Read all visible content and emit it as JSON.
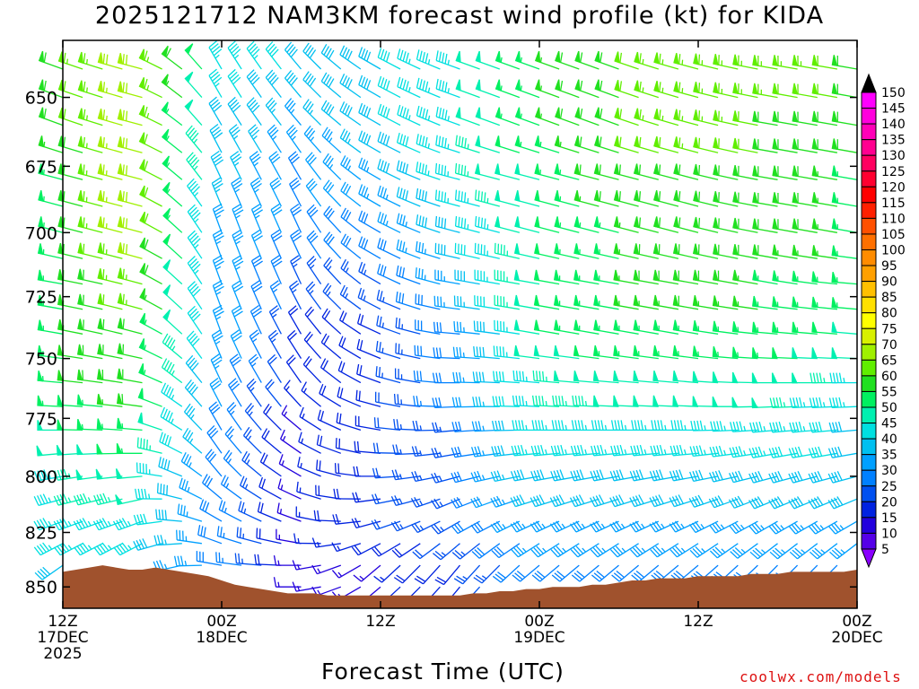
{
  "title": "2025121712 NAM3KM forecast wind profile (kt) for KIDA",
  "credit": "coolwx.com/models",
  "chart_data": {
    "type": "wind-barb-profile",
    "title": "2025121712 NAM3KM forecast wind profile (kt) for KIDA",
    "xlabel": "Forecast Time (UTC)",
    "ylabel": "",
    "x_range_hours": [
      0,
      60
    ],
    "y_range_hpa": [
      630,
      860
    ],
    "x_ticks": [
      {
        "hour": 0,
        "label": "12Z",
        "sub": "17DEC",
        "sub2": "2025"
      },
      {
        "hour": 12,
        "label": "00Z",
        "sub": "18DEC",
        "sub2": ""
      },
      {
        "hour": 24,
        "label": "12Z",
        "sub": "",
        "sub2": ""
      },
      {
        "hour": 36,
        "label": "00Z",
        "sub": "19DEC",
        "sub2": ""
      },
      {
        "hour": 48,
        "label": "12Z",
        "sub": "",
        "sub2": ""
      },
      {
        "hour": 60,
        "label": "00Z",
        "sub": "20DEC",
        "sub2": ""
      }
    ],
    "y_ticks": [
      650,
      675,
      700,
      725,
      750,
      775,
      800,
      825,
      850
    ],
    "colorbar": {
      "unit": "kt",
      "levels": [
        5,
        10,
        15,
        20,
        25,
        30,
        35,
        40,
        45,
        50,
        55,
        60,
        65,
        70,
        75,
        80,
        85,
        90,
        95,
        100,
        105,
        110,
        115,
        120,
        125,
        130,
        135,
        140,
        145,
        150
      ],
      "colors": [
        "#8a00ff",
        "#5500e8",
        "#2200dd",
        "#0022e0",
        "#0050f0",
        "#0080ff",
        "#00a0ff",
        "#00c0f0",
        "#00e0e0",
        "#00f0b0",
        "#00f060",
        "#20e020",
        "#60ee00",
        "#a0f000",
        "#d8f000",
        "#ffff00",
        "#ffe000",
        "#ffc000",
        "#ffa000",
        "#ff8c00",
        "#ff7000",
        "#ff5000",
        "#ff2000",
        "#ff0000",
        "#ff0030",
        "#ff0060",
        "#ff0090",
        "#ff00b8",
        "#ff00dd",
        "#ff00ff"
      ]
    },
    "terrain_color": "#a0522d",
    "surface_pressure_hpa": [
      {
        "hour": 0,
        "p": 843
      },
      {
        "hour": 1,
        "p": 842
      },
      {
        "hour": 2,
        "p": 841
      },
      {
        "hour": 3,
        "p": 840
      },
      {
        "hour": 4,
        "p": 841
      },
      {
        "hour": 5,
        "p": 842
      },
      {
        "hour": 6,
        "p": 842
      },
      {
        "hour": 7,
        "p": 841
      },
      {
        "hour": 8,
        "p": 842
      },
      {
        "hour": 9,
        "p": 843
      },
      {
        "hour": 10,
        "p": 844
      },
      {
        "hour": 11,
        "p": 845
      },
      {
        "hour": 12,
        "p": 847
      },
      {
        "hour": 13,
        "p": 849
      },
      {
        "hour": 14,
        "p": 850
      },
      {
        "hour": 15,
        "p": 851
      },
      {
        "hour": 16,
        "p": 852
      },
      {
        "hour": 17,
        "p": 853
      },
      {
        "hour": 18,
        "p": 853
      },
      {
        "hour": 19,
        "p": 853
      },
      {
        "hour": 20,
        "p": 854
      },
      {
        "hour": 21,
        "p": 854
      },
      {
        "hour": 22,
        "p": 854
      },
      {
        "hour": 23,
        "p": 854
      },
      {
        "hour": 24,
        "p": 854
      },
      {
        "hour": 25,
        "p": 854
      },
      {
        "hour": 26,
        "p": 854
      },
      {
        "hour": 27,
        "p": 854
      },
      {
        "hour": 28,
        "p": 854
      },
      {
        "hour": 29,
        "p": 854
      },
      {
        "hour": 30,
        "p": 854
      },
      {
        "hour": 31,
        "p": 853
      },
      {
        "hour": 32,
        "p": 853
      },
      {
        "hour": 33,
        "p": 852
      },
      {
        "hour": 34,
        "p": 852
      },
      {
        "hour": 35,
        "p": 851
      },
      {
        "hour": 36,
        "p": 851
      },
      {
        "hour": 37,
        "p": 850
      },
      {
        "hour": 38,
        "p": 850
      },
      {
        "hour": 39,
        "p": 850
      },
      {
        "hour": 40,
        "p": 849
      },
      {
        "hour": 41,
        "p": 849
      },
      {
        "hour": 42,
        "p": 848
      },
      {
        "hour": 43,
        "p": 847
      },
      {
        "hour": 44,
        "p": 847
      },
      {
        "hour": 45,
        "p": 846
      },
      {
        "hour": 46,
        "p": 846
      },
      {
        "hour": 47,
        "p": 846
      },
      {
        "hour": 48,
        "p": 845
      },
      {
        "hour": 49,
        "p": 845
      },
      {
        "hour": 50,
        "p": 845
      },
      {
        "hour": 51,
        "p": 845
      },
      {
        "hour": 52,
        "p": 844
      },
      {
        "hour": 53,
        "p": 844
      },
      {
        "hour": 54,
        "p": 844
      },
      {
        "hour": 55,
        "p": 843
      },
      {
        "hour": 56,
        "p": 843
      },
      {
        "hour": 57,
        "p": 843
      },
      {
        "hour": 58,
        "p": 843
      },
      {
        "hour": 59,
        "p": 843
      },
      {
        "hour": 60,
        "p": 842
      }
    ],
    "wind_levels_hpa": [
      640,
      650,
      660,
      670,
      680,
      690,
      700,
      710,
      720,
      730,
      740,
      750,
      760,
      770,
      780,
      790,
      800,
      810,
      820,
      830,
      840,
      850
    ],
    "wind_samples": [
      {
        "hour": 0,
        "profile": [
          [
            640,
            290,
            60
          ],
          [
            660,
            290,
            58
          ],
          [
            680,
            285,
            55
          ],
          [
            700,
            285,
            55
          ],
          [
            720,
            280,
            55
          ],
          [
            740,
            280,
            55
          ],
          [
            760,
            275,
            55
          ],
          [
            780,
            270,
            50
          ],
          [
            800,
            260,
            45
          ],
          [
            820,
            250,
            45
          ],
          [
            840,
            235,
            40
          ]
        ]
      },
      {
        "hour": 6,
        "profile": [
          [
            640,
            285,
            70
          ],
          [
            660,
            285,
            70
          ],
          [
            680,
            285,
            70
          ],
          [
            700,
            285,
            70
          ],
          [
            720,
            285,
            65
          ],
          [
            740,
            285,
            60
          ],
          [
            760,
            280,
            60
          ],
          [
            780,
            275,
            55
          ],
          [
            800,
            265,
            50
          ],
          [
            820,
            250,
            45
          ],
          [
            840,
            235,
            40
          ]
        ]
      },
      {
        "hour": 12,
        "profile": [
          [
            640,
            330,
            45
          ],
          [
            660,
            330,
            40
          ],
          [
            680,
            335,
            38
          ],
          [
            700,
            340,
            35
          ],
          [
            720,
            340,
            35
          ],
          [
            740,
            340,
            35
          ],
          [
            760,
            335,
            33
          ],
          [
            780,
            330,
            30
          ],
          [
            800,
            320,
            30
          ],
          [
            820,
            300,
            30
          ],
          [
            840,
            280,
            30
          ]
        ]
      },
      {
        "hour": 18,
        "profile": [
          [
            640,
            320,
            40
          ],
          [
            660,
            320,
            35
          ],
          [
            680,
            330,
            30
          ],
          [
            700,
            335,
            30
          ],
          [
            720,
            335,
            25
          ],
          [
            740,
            330,
            20
          ],
          [
            760,
            325,
            18
          ],
          [
            780,
            310,
            15
          ],
          [
            800,
            300,
            15
          ],
          [
            820,
            290,
            15
          ],
          [
            840,
            270,
            15
          ]
        ]
      },
      {
        "hour": 24,
        "profile": [
          [
            640,
            300,
            40
          ],
          [
            660,
            300,
            40
          ],
          [
            680,
            300,
            35
          ],
          [
            700,
            300,
            30
          ],
          [
            720,
            300,
            25
          ],
          [
            740,
            295,
            20
          ],
          [
            760,
            290,
            20
          ],
          [
            780,
            280,
            20
          ],
          [
            800,
            270,
            20
          ],
          [
            820,
            255,
            20
          ],
          [
            840,
            230,
            15
          ]
        ]
      },
      {
        "hour": 30,
        "profile": [
          [
            640,
            290,
            45
          ],
          [
            660,
            290,
            45
          ],
          [
            680,
            285,
            45
          ],
          [
            700,
            285,
            40
          ],
          [
            720,
            280,
            35
          ],
          [
            740,
            275,
            30
          ],
          [
            760,
            270,
            30
          ],
          [
            780,
            265,
            25
          ],
          [
            800,
            255,
            25
          ],
          [
            820,
            240,
            25
          ],
          [
            840,
            220,
            20
          ]
        ]
      },
      {
        "hour": 36,
        "profile": [
          [
            640,
            290,
            55
          ],
          [
            660,
            290,
            55
          ],
          [
            680,
            285,
            50
          ],
          [
            700,
            285,
            50
          ],
          [
            720,
            280,
            50
          ],
          [
            740,
            280,
            50
          ],
          [
            760,
            275,
            45
          ],
          [
            780,
            270,
            45
          ],
          [
            800,
            260,
            40
          ],
          [
            820,
            245,
            35
          ],
          [
            840,
            230,
            30
          ]
        ]
      },
      {
        "hour": 42,
        "profile": [
          [
            640,
            290,
            60
          ],
          [
            660,
            290,
            60
          ],
          [
            680,
            285,
            60
          ],
          [
            700,
            285,
            55
          ],
          [
            720,
            280,
            55
          ],
          [
            740,
            280,
            55
          ],
          [
            760,
            275,
            50
          ],
          [
            780,
            270,
            45
          ],
          [
            800,
            260,
            40
          ],
          [
            820,
            245,
            35
          ],
          [
            840,
            230,
            30
          ]
        ]
      },
      {
        "hour": 48,
        "profile": [
          [
            640,
            285,
            65
          ],
          [
            660,
            285,
            65
          ],
          [
            680,
            285,
            60
          ],
          [
            700,
            285,
            60
          ],
          [
            720,
            280,
            60
          ],
          [
            740,
            280,
            55
          ],
          [
            760,
            275,
            50
          ],
          [
            780,
            270,
            45
          ],
          [
            800,
            260,
            40
          ],
          [
            820,
            245,
            35
          ],
          [
            840,
            230,
            30
          ]
        ]
      },
      {
        "hour": 54,
        "profile": [
          [
            640,
            280,
            65
          ],
          [
            660,
            280,
            60
          ],
          [
            680,
            280,
            60
          ],
          [
            700,
            280,
            60
          ],
          [
            720,
            280,
            55
          ],
          [
            740,
            275,
            55
          ],
          [
            760,
            270,
            50
          ],
          [
            780,
            265,
            45
          ],
          [
            800,
            255,
            40
          ],
          [
            820,
            240,
            35
          ],
          [
            840,
            225,
            30
          ]
        ]
      },
      {
        "hour": 60,
        "profile": [
          [
            640,
            280,
            60
          ],
          [
            660,
            280,
            60
          ],
          [
            680,
            280,
            55
          ],
          [
            700,
            280,
            55
          ],
          [
            720,
            275,
            55
          ],
          [
            740,
            275,
            50
          ],
          [
            760,
            270,
            45
          ],
          [
            780,
            265,
            40
          ],
          [
            800,
            255,
            40
          ],
          [
            820,
            240,
            35
          ],
          [
            840,
            225,
            30
          ]
        ]
      }
    ]
  }
}
